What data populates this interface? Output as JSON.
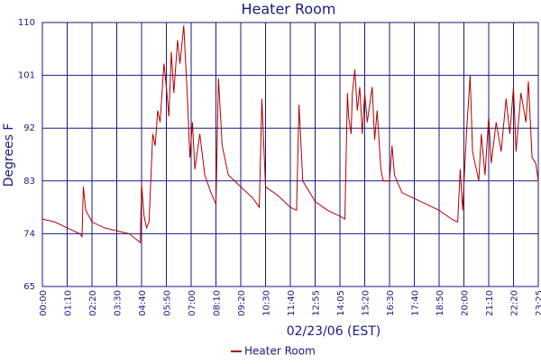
{
  "chart_data": {
    "type": "line",
    "title": "Heater Room",
    "xlabel": "02/23/06 (EST)",
    "ylabel": "Degrees F",
    "x": [
      0,
      0.5,
      1,
      1.5,
      1.6,
      1.65,
      1.75,
      2,
      2.5,
      3,
      3.5,
      3.8,
      3.95,
      4.0,
      4.1,
      4.2,
      4.3,
      4.45,
      4.55,
      4.65,
      4.75,
      4.9,
      5.0,
      5.1,
      5.2,
      5.3,
      5.45,
      5.55,
      5.7,
      5.85,
      5.95,
      6.05,
      6.15,
      6.35,
      6.55,
      6.8,
      7.0,
      7.1,
      7.25,
      7.5,
      8.0,
      8.5,
      8.75,
      8.85,
      9.0,
      9.5,
      10,
      10.25,
      10.35,
      10.5,
      11,
      11.5,
      12,
      12.2,
      12.3,
      12.35,
      12.45,
      12.5,
      12.6,
      12.7,
      12.8,
      12.9,
      13.0,
      13.1,
      13.3,
      13.4,
      13.5,
      13.65,
      13.75,
      14.0,
      14.1,
      14.2,
      14.5,
      15,
      15.5,
      16,
      16.5,
      16.75,
      16.85,
      16.95,
      17.1,
      17.25,
      17.35,
      17.6,
      17.7,
      17.85,
      18.0,
      18.1,
      18.3,
      18.5,
      18.7,
      18.85,
      19.0,
      19.1,
      19.3,
      19.5,
      19.6,
      19.75,
      19.9,
      20
    ],
    "series": [
      {
        "name": "Heater Room",
        "color": "#b00000",
        "values": [
          76.5,
          76,
          75,
          74,
          73.5,
          82,
          78,
          76,
          75,
          74.5,
          74,
          73,
          72.5,
          82.5,
          77,
          75,
          76,
          91,
          89,
          95,
          93,
          103,
          99,
          94,
          105,
          98,
          107,
          103,
          109.5,
          97,
          87,
          93,
          85,
          91,
          84,
          81,
          79,
          100.5,
          89,
          84,
          82,
          80,
          78.5,
          97,
          82,
          80.5,
          78.5,
          78,
          96,
          83,
          79.5,
          78,
          77,
          76.5,
          98,
          94,
          91,
          98,
          102,
          95,
          99,
          91,
          98,
          93,
          99,
          90,
          95,
          85,
          83,
          83,
          89,
          84,
          81,
          80,
          79,
          78,
          76.5,
          76,
          85,
          78,
          91,
          101,
          88,
          83,
          91,
          84,
          94,
          86,
          93,
          88,
          97,
          91,
          99,
          88,
          98,
          93,
          100,
          87,
          86,
          83
        ]
      }
    ],
    "xlim": [
      0,
      20
    ],
    "xticks": [
      {
        "value": 0,
        "label": "00:00"
      },
      {
        "value": 1,
        "label": "01:10"
      },
      {
        "value": 2,
        "label": "02:20"
      },
      {
        "value": 3,
        "label": "03:30"
      },
      {
        "value": 4,
        "label": "04:40"
      },
      {
        "value": 5,
        "label": "05:50"
      },
      {
        "value": 6,
        "label": "07:00"
      },
      {
        "value": 7,
        "label": "08:10"
      },
      {
        "value": 8,
        "label": "09:20"
      },
      {
        "value": 9,
        "label": "10:30"
      },
      {
        "value": 10,
        "label": "11:40"
      },
      {
        "value": 11,
        "label": "12:55"
      },
      {
        "value": 12,
        "label": "14:05"
      },
      {
        "value": 13,
        "label": "15:20"
      },
      {
        "value": 14,
        "label": "16:30"
      },
      {
        "value": 15,
        "label": "17:40"
      },
      {
        "value": 16,
        "label": "18:50"
      },
      {
        "value": 17,
        "label": "20:00"
      },
      {
        "value": 18,
        "label": "21:10"
      },
      {
        "value": 19,
        "label": "22:20"
      },
      {
        "value": 20,
        "label": "23:25"
      }
    ],
    "ylim": [
      65,
      110
    ],
    "yticks": [
      65,
      74,
      83,
      92,
      101,
      110
    ],
    "grid": true,
    "legend": "bottom"
  }
}
